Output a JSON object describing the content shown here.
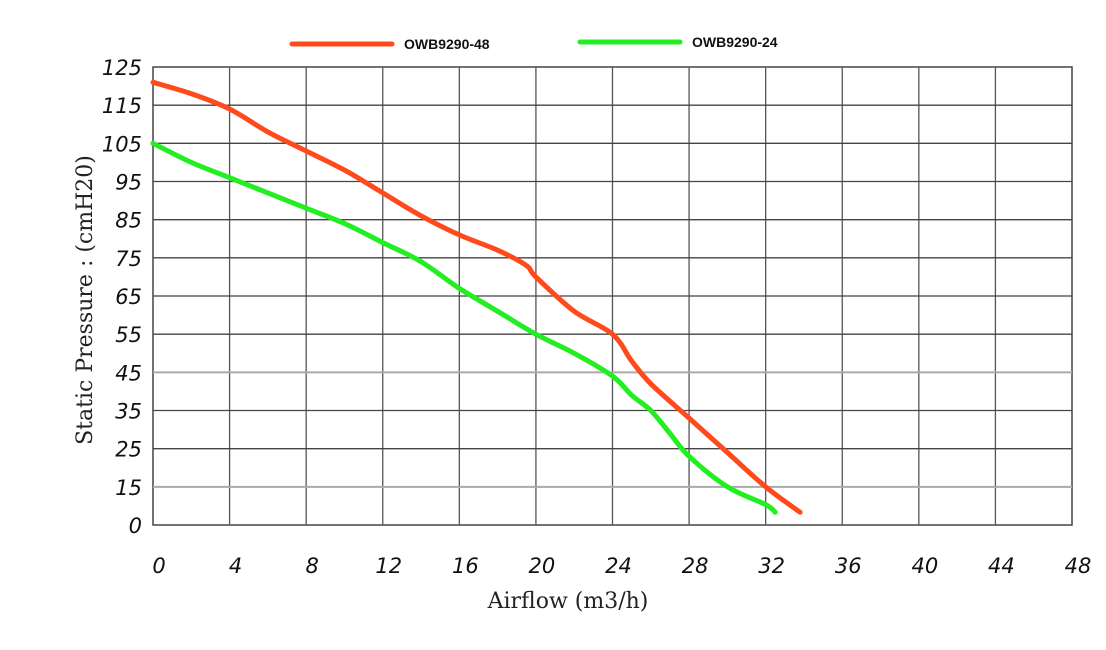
{
  "chart_data": {
    "type": "line",
    "title": "",
    "xlabel": "Airflow (m3/h)",
    "ylabel": "Static Pressure : (cmH20)",
    "x_ticks": [
      "0",
      "4",
      "8",
      "12",
      "16",
      "20",
      "24",
      "28",
      "32",
      "36",
      "40",
      "44",
      "48"
    ],
    "y_ticks": [
      "125",
      "115",
      "105",
      "95",
      "85",
      "75",
      "65",
      "55",
      "45",
      "35",
      "25",
      "15",
      "0"
    ],
    "xlim": [
      0,
      48
    ],
    "grid": true,
    "legend_position": "top",
    "series": [
      {
        "name": "OWB9290-48",
        "color": "#ff4a1c",
        "x": [
          0,
          2,
          4,
          6,
          8,
          10,
          12,
          14,
          16,
          18,
          19.5,
          20,
          22,
          24,
          25,
          26,
          28,
          30,
          32,
          33.8
        ],
        "y": [
          121,
          118,
          114,
          108,
          103,
          98,
          92,
          86,
          81,
          77,
          73,
          70,
          61,
          55,
          48,
          42,
          33,
          24,
          15,
          5
        ]
      },
      {
        "name": "OWB9290-24",
        "color": "#22ee22",
        "x": [
          0,
          2,
          4,
          6,
          8,
          10,
          12,
          14,
          16,
          18,
          20,
          22,
          24,
          25,
          26,
          27,
          28,
          30,
          32,
          32.5
        ],
        "y": [
          105,
          100,
          96,
          92,
          88,
          84,
          79,
          74,
          67,
          61,
          55,
          50,
          44,
          39,
          35,
          29,
          23,
          15,
          8,
          5
        ]
      }
    ]
  }
}
